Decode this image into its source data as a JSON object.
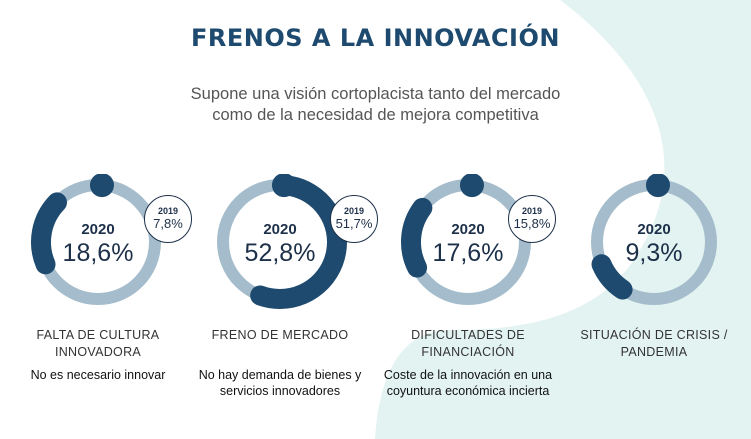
{
  "header": {
    "title": "FRENOS A LA INNOVACIÓN",
    "subtitle": "Supone una visión cortoplacista tanto del mercado\ncomo de la necesidad de mejora competitiva"
  },
  "colors": {
    "arc": "#1d4a6e",
    "track": "#a4bccb",
    "text": "#1d3049",
    "background_shape": "#e3f3f1"
  },
  "chart_data": {
    "type": "donut",
    "unit": "%",
    "series": [
      {
        "name": "2020",
        "values": [
          18.6,
          52.8,
          17.6,
          9.3
        ]
      },
      {
        "name": "2019",
        "values": [
          7.8,
          51.7,
          15.8,
          null
        ]
      }
    ],
    "categories": [
      "FALTA DE CULTURA INNOVADORA",
      "FRENO DE MERCADO",
      "DIFICULTADES DE FINANCIACIÓN",
      "SITUACIÓN DE CRISIS / PANDEMIA"
    ]
  },
  "metrics": [
    {
      "year": "2020",
      "value_text": "18,6%",
      "value": 18.6,
      "prev_year": "2019",
      "prev_value_text": "7,8%",
      "label": "FALTA DE CULTURA INNOVADORA",
      "description": "No es necesario innovar"
    },
    {
      "year": "2020",
      "value_text": "52,8%",
      "value": 52.8,
      "prev_year": "2019",
      "prev_value_text": "51,7%",
      "label": "FRENO DE MERCADO",
      "description": "No hay demanda de bienes y servicios innovadores"
    },
    {
      "year": "2020",
      "value_text": "17,6%",
      "value": 17.6,
      "prev_year": "2019",
      "prev_value_text": "15,8%",
      "label": "DIFICULTADES DE FINANCIACIÓN",
      "description": "Coste de la innovación en una coyuntura económica incierta"
    },
    {
      "year": "2020",
      "value_text": "9,3%",
      "value": 9.3,
      "label": "SITUACIÓN DE CRISIS / PANDEMIA"
    }
  ]
}
